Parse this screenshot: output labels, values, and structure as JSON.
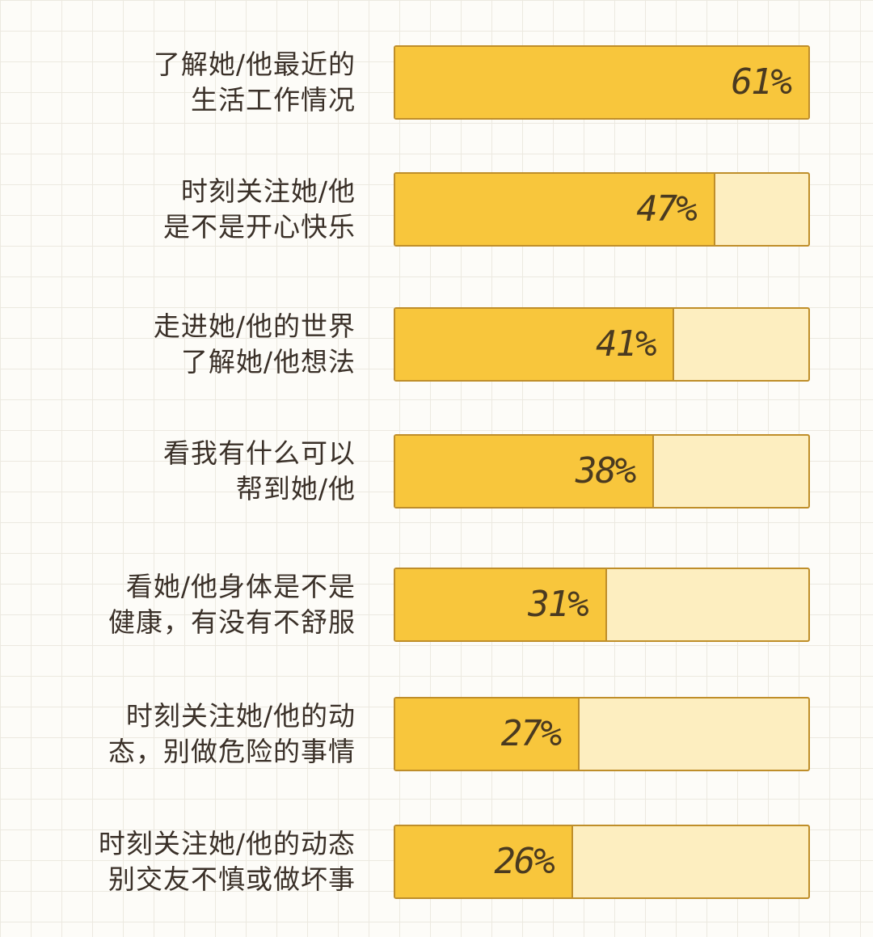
{
  "chart_data": {
    "type": "bar",
    "orientation": "horizontal",
    "categories": [
      [
        "了解她/他最近的",
        "生活工作情况"
      ],
      [
        "时刻关注她/他",
        "是不是开心快乐"
      ],
      [
        "走进她/他的世界",
        "了解她/他想法"
      ],
      [
        "看我有什么可以",
        "帮到她/他"
      ],
      [
        "看她/他身体是不是",
        "健康，有没有不舒服"
      ],
      [
        "时刻关注她/他的动",
        "态，别做危险的事情"
      ],
      [
        "时刻关注她/他的动态",
        "别交友不慎或做坏事"
      ]
    ],
    "values": [
      61,
      47,
      41,
      38,
      31,
      27,
      26
    ],
    "value_labels": [
      "61%",
      "47%",
      "41%",
      "38%",
      "31%",
      "27%",
      "26%"
    ],
    "xlim": [
      0,
      61
    ],
    "title": "",
    "xlabel": "",
    "ylabel": "",
    "colors": {
      "fill": "#f8c63c",
      "track": "#fdeec0",
      "border": "#bf8e2a"
    }
  }
}
